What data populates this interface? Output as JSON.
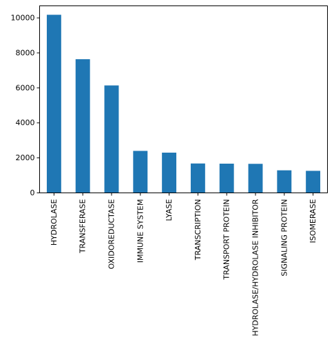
{
  "chart_data": {
    "type": "bar",
    "title": "",
    "xlabel": "",
    "ylabel": "",
    "categories": [
      "HYDROLASE",
      "TRANSFERASE",
      "OXIDOREDUCTASE",
      "IMMUNE SYSTEM",
      "LYASE",
      "TRANSCRIPTION",
      "TRANSPORT PROTEIN",
      "HYDROLASE/HYDROLASE INHIBITOR",
      "SIGNALING PROTEIN",
      "ISOMERASE"
    ],
    "values": [
      10180,
      7640,
      6140,
      2400,
      2300,
      1680,
      1670,
      1660,
      1290,
      1260
    ],
    "ylim": [
      0,
      10690
    ],
    "yticks": [
      0,
      2000,
      4000,
      6000,
      8000,
      10000
    ],
    "ytick_labels": [
      "0",
      "2000",
      "4000",
      "6000",
      "8000",
      "10000"
    ],
    "bar_color": "#1f77b4",
    "grid": false,
    "legend": false
  }
}
